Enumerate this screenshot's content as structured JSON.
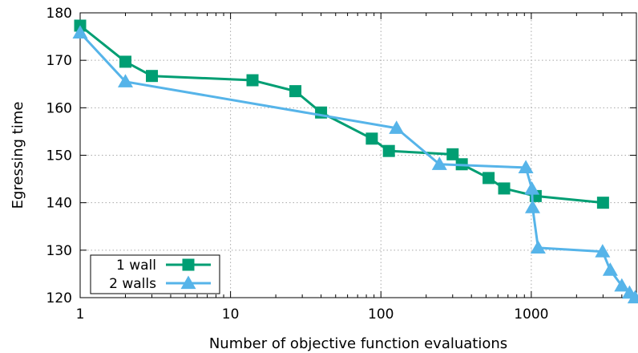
{
  "chart_data": {
    "type": "line",
    "title": "",
    "xlabel": "Number of objective function evaluations",
    "ylabel": "Egressing time",
    "x_scale": "log",
    "xlim": [
      1,
      5000
    ],
    "ylim": [
      120,
      180
    ],
    "x_ticks": [
      1,
      10,
      100,
      1000
    ],
    "x_tick_labels": [
      "1",
      "10",
      "100",
      "1000"
    ],
    "y_ticks": [
      120,
      130,
      140,
      150,
      160,
      170,
      180
    ],
    "y_tick_labels": [
      "120",
      "130",
      "140",
      "150",
      "160",
      "170",
      "180"
    ],
    "grid": true,
    "legend_position": "bottom-left",
    "series": [
      {
        "name": "1 wall",
        "color": "#009E73",
        "marker": "square",
        "x": [
          1,
          2,
          3,
          14,
          27,
          40,
          87,
          113,
          300,
          345,
          520,
          660,
          1070,
          3000
        ],
        "y": [
          177.3,
          169.7,
          166.7,
          165.8,
          163.5,
          159,
          153.5,
          150.9,
          150.2,
          148.1,
          145.2,
          143,
          141.4,
          140
        ]
      },
      {
        "name": "2 walls",
        "color": "#56B4E9",
        "marker": "triangle",
        "x": [
          1,
          2,
          127,
          245,
          920,
          1010,
          1020,
          1110,
          2980,
          3350,
          4000,
          4500,
          4900
        ],
        "y": [
          175.8,
          165.5,
          155.7,
          148.1,
          147.4,
          142.9,
          139,
          130.5,
          129.7,
          125.8,
          122.5,
          121,
          120
        ]
      }
    ]
  }
}
